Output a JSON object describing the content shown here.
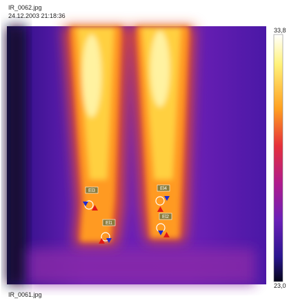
{
  "header": {
    "filename": "IR_0062.jpg",
    "timestamp": "24.12.2003 21:18:36"
  },
  "scale": {
    "max": "33,8",
    "min": "23,0"
  },
  "markers": [
    {
      "label": "El3"
    },
    {
      "label": "El4"
    },
    {
      "label": "El1"
    },
    {
      "label": "El2"
    }
  ],
  "footer": {
    "filename": "IR_0061.jpg"
  }
}
